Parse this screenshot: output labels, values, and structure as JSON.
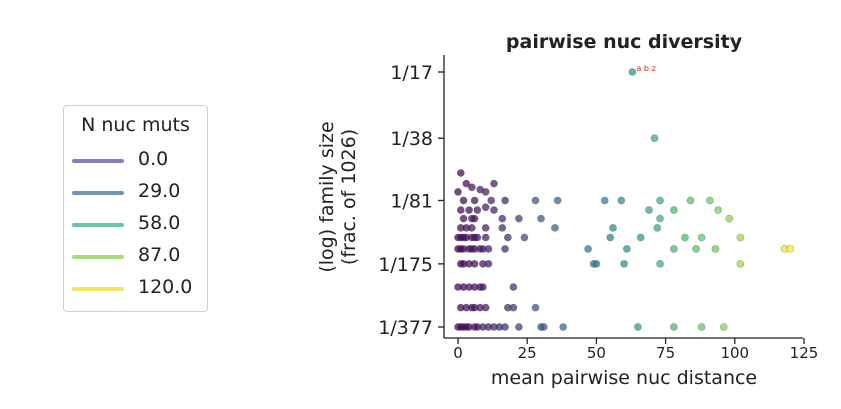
{
  "chart_data": {
    "type": "scatter",
    "title": "pairwise nuc diversity",
    "xlabel": "mean pairwise nuc distance",
    "ylabel_line1": "(log) family size",
    "ylabel_line2": "(frac. of 1026)",
    "x_ticks": [
      "0",
      "25",
      "50",
      "75",
      "100",
      "125"
    ],
    "x_tick_values": [
      0,
      25,
      50,
      75,
      100,
      125
    ],
    "xlim": [
      -4,
      125
    ],
    "y_ticks": [
      "1/17",
      "1/38",
      "1/81",
      "1/175",
      "1/377"
    ],
    "y_tick_values": [
      17,
      38,
      81,
      175,
      377
    ],
    "y_scale": "log (reciprocal fraction of family)",
    "annotation": {
      "text": "a b z",
      "x": 63,
      "y": 17,
      "color": "#e0281e"
    },
    "colormap": "viridis",
    "color_range": [
      0,
      120
    ],
    "legend": {
      "title": "N nuc muts",
      "entries": [
        {
          "label": "0.0",
          "color": "#8c7bb8"
        },
        {
          "label": "29.0",
          "color": "#7494b0"
        },
        {
          "label": "58.0",
          "color": "#6ec3ae"
        },
        {
          "label": "87.0",
          "color": "#a6dc7c"
        },
        {
          "label": "120.0",
          "color": "#f4e55c"
        }
      ]
    },
    "points": [
      [
        63,
        17,
        63
      ],
      [
        71,
        38,
        71
      ],
      [
        1,
        58,
        2
      ],
      [
        3,
        66,
        3
      ],
      [
        5,
        69,
        5
      ],
      [
        8,
        71,
        8
      ],
      [
        13,
        66,
        10
      ],
      [
        10,
        73,
        10
      ],
      [
        0,
        73,
        0
      ],
      [
        6,
        81,
        5
      ],
      [
        2,
        81,
        2
      ],
      [
        12,
        81,
        12
      ],
      [
        17,
        81,
        12
      ],
      [
        28,
        81,
        28
      ],
      [
        36,
        81,
        36
      ],
      [
        53,
        81,
        53
      ],
      [
        59,
        81,
        59
      ],
      [
        73,
        81,
        73
      ],
      [
        84,
        81,
        84
      ],
      [
        91,
        81,
        91
      ],
      [
        10,
        88,
        9
      ],
      [
        1,
        91,
        1
      ],
      [
        4,
        91,
        3
      ],
      [
        7,
        91,
        6
      ],
      [
        13,
        91,
        10
      ],
      [
        78,
        91,
        78
      ],
      [
        69,
        91,
        69
      ],
      [
        94,
        91,
        94
      ],
      [
        2,
        101,
        2
      ],
      [
        5,
        101,
        5
      ],
      [
        6,
        101,
        6
      ],
      [
        16,
        101,
        14
      ],
      [
        22,
        101,
        18
      ],
      [
        30,
        101,
        30
      ],
      [
        73,
        101,
        73
      ],
      [
        98,
        101,
        98
      ],
      [
        1,
        113,
        1
      ],
      [
        3,
        113,
        3
      ],
      [
        5,
        113,
        5
      ],
      [
        10,
        113,
        10
      ],
      [
        16,
        113,
        14
      ],
      [
        35,
        113,
        35
      ],
      [
        56,
        113,
        56
      ],
      [
        72,
        113,
        72
      ],
      [
        0,
        127,
        0
      ],
      [
        1,
        127,
        1
      ],
      [
        2,
        127,
        2
      ],
      [
        3,
        127,
        3
      ],
      [
        5,
        127,
        4
      ],
      [
        6,
        127,
        6
      ],
      [
        7,
        127,
        7
      ],
      [
        10,
        127,
        9
      ],
      [
        18,
        127,
        15
      ],
      [
        24,
        127,
        24
      ],
      [
        55,
        127,
        55
      ],
      [
        66,
        127,
        66
      ],
      [
        82,
        127,
        82
      ],
      [
        88,
        127,
        88
      ],
      [
        102,
        127,
        102
      ],
      [
        0,
        146,
        0
      ],
      [
        1,
        146,
        1
      ],
      [
        2,
        146,
        2
      ],
      [
        4,
        146,
        3
      ],
      [
        5,
        146,
        5
      ],
      [
        6,
        146,
        6
      ],
      [
        8,
        146,
        7
      ],
      [
        9,
        146,
        8
      ],
      [
        11,
        146,
        9
      ],
      [
        17,
        146,
        14
      ],
      [
        47,
        146,
        47
      ],
      [
        61,
        146,
        61
      ],
      [
        78,
        146,
        78
      ],
      [
        86,
        146,
        86
      ],
      [
        93,
        146,
        93
      ],
      [
        118,
        146,
        118
      ],
      [
        120,
        146,
        120
      ],
      [
        1,
        175,
        1
      ],
      [
        2,
        175,
        2
      ],
      [
        4,
        175,
        3
      ],
      [
        6,
        175,
        5
      ],
      [
        9,
        175,
        7
      ],
      [
        11,
        175,
        10
      ],
      [
        49,
        175,
        49
      ],
      [
        50,
        175,
        50
      ],
      [
        60,
        175,
        60
      ],
      [
        73,
        175,
        73
      ],
      [
        102,
        175,
        102
      ],
      [
        0,
        232,
        0
      ],
      [
        2,
        232,
        2
      ],
      [
        4,
        232,
        3
      ],
      [
        6,
        232,
        5
      ],
      [
        8,
        232,
        6
      ],
      [
        9,
        232,
        8
      ],
      [
        20,
        232,
        18
      ],
      [
        1,
        298,
        1
      ],
      [
        3,
        298,
        3
      ],
      [
        5,
        298,
        4
      ],
      [
        6,
        298,
        5
      ],
      [
        8,
        298,
        7
      ],
      [
        10,
        298,
        9
      ],
      [
        18,
        298,
        14
      ],
      [
        20,
        298,
        17
      ],
      [
        28,
        298,
        28
      ],
      [
        0,
        377,
        0
      ],
      [
        1,
        377,
        1
      ],
      [
        2,
        377,
        2
      ],
      [
        3,
        377,
        3
      ],
      [
        4,
        377,
        4
      ],
      [
        6,
        377,
        5
      ],
      [
        7,
        377,
        6
      ],
      [
        9,
        377,
        8
      ],
      [
        11,
        377,
        10
      ],
      [
        13,
        377,
        12
      ],
      [
        15,
        377,
        14
      ],
      [
        17,
        377,
        16
      ],
      [
        22,
        377,
        22
      ],
      [
        30,
        377,
        30
      ],
      [
        31,
        377,
        31
      ],
      [
        38,
        377,
        38
      ],
      [
        65,
        377,
        65
      ],
      [
        78,
        377,
        78
      ],
      [
        88,
        377,
        88
      ],
      [
        96,
        377,
        96
      ]
    ]
  }
}
